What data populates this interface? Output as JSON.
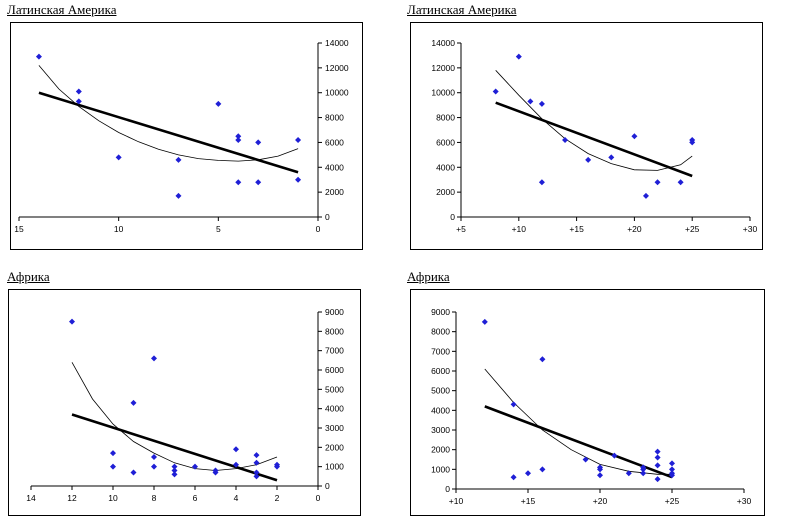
{
  "colors": {
    "points": "#1f1fd6",
    "trend_linear": "#000000",
    "trend_poly": "#000000",
    "axes": "#000000"
  },
  "charts": [
    {
      "heading": "Латинская Америка"
    },
    {
      "heading": "Латинская Америка"
    },
    {
      "heading": "Африка"
    },
    {
      "heading": "Африка"
    }
  ],
  "chart_data": [
    {
      "type": "scatter",
      "title": "Латинская Америка",
      "x_axis": {
        "min": 0,
        "max": 15,
        "reversed": true,
        "ticks": [
          15,
          10,
          5,
          0
        ],
        "tick_labels": [
          "15",
          "10",
          "5",
          "0"
        ]
      },
      "y_axis": {
        "min": 0,
        "max": 14000,
        "position": "right",
        "ticks": [
          0,
          2000,
          4000,
          6000,
          8000,
          10000,
          12000,
          14000
        ],
        "tick_labels": [
          "0",
          "2000",
          "4000",
          "6000",
          "8000",
          "10000",
          "12000",
          "14000"
        ]
      },
      "points": [
        [
          14,
          12900
        ],
        [
          12,
          10100
        ],
        [
          12,
          9300
        ],
        [
          10,
          4800
        ],
        [
          7,
          4600
        ],
        [
          7,
          1700
        ],
        [
          5,
          9100
        ],
        [
          4,
          6500
        ],
        [
          4,
          6200
        ],
        [
          4,
          2800
        ],
        [
          3,
          6000
        ],
        [
          3,
          2800
        ],
        [
          1,
          6200
        ],
        [
          1,
          3000
        ]
      ],
      "linear_trend": [
        [
          14,
          10000
        ],
        [
          1,
          3600
        ]
      ],
      "poly_trend": [
        [
          14,
          12200
        ],
        [
          13,
          10300
        ],
        [
          12,
          8900
        ],
        [
          11,
          7750
        ],
        [
          10,
          6800
        ],
        [
          9,
          6050
        ],
        [
          8,
          5450
        ],
        [
          7,
          5000
        ],
        [
          6,
          4700
        ],
        [
          5,
          4550
        ],
        [
          4,
          4500
        ],
        [
          3,
          4600
        ],
        [
          2,
          4900
        ],
        [
          1,
          5500
        ]
      ],
      "grid": false
    },
    {
      "type": "scatter",
      "title": "Латинская Америка",
      "x_axis": {
        "min": 5,
        "max": 30,
        "ticks": [
          5,
          10,
          15,
          20,
          25,
          30
        ],
        "tick_labels": [
          "+5",
          "+10",
          "+15",
          "+20",
          "+25",
          "+30"
        ]
      },
      "y_axis": {
        "min": 0,
        "max": 14000,
        "position": "left",
        "ticks": [
          0,
          2000,
          4000,
          6000,
          8000,
          10000,
          12000,
          14000
        ],
        "tick_labels": [
          "0",
          "2000",
          "4000",
          "6000",
          "8000",
          "10000",
          "12000",
          "14000"
        ]
      },
      "points": [
        [
          8,
          10100
        ],
        [
          10,
          12900
        ],
        [
          11,
          9300
        ],
        [
          12,
          9100
        ],
        [
          12,
          2800
        ],
        [
          14,
          6200
        ],
        [
          16,
          4600
        ],
        [
          18,
          4800
        ],
        [
          20,
          6500
        ],
        [
          21,
          1700
        ],
        [
          22,
          2800
        ],
        [
          24,
          2800
        ],
        [
          25,
          6200
        ],
        [
          25,
          6000
        ]
      ],
      "linear_trend": [
        [
          8,
          9200
        ],
        [
          25,
          3300
        ]
      ],
      "poly_trend": [
        [
          8,
          11800
        ],
        [
          10,
          9800
        ],
        [
          12,
          7900
        ],
        [
          14,
          6300
        ],
        [
          16,
          5100
        ],
        [
          18,
          4300
        ],
        [
          20,
          3800
        ],
        [
          22,
          3750
        ],
        [
          24,
          4200
        ],
        [
          25,
          4900
        ]
      ],
      "grid": false
    },
    {
      "type": "scatter",
      "title": "Африка",
      "x_axis": {
        "min": 0,
        "max": 14,
        "reversed": true,
        "ticks": [
          14,
          12,
          10,
          8,
          6,
          4,
          2,
          0
        ],
        "tick_labels": [
          "14",
          "12",
          "10",
          "8",
          "6",
          "4",
          "2",
          "0"
        ]
      },
      "y_axis": {
        "min": 0,
        "max": 9000,
        "position": "right",
        "ticks": [
          0,
          1000,
          2000,
          3000,
          4000,
          5000,
          6000,
          7000,
          8000,
          9000
        ],
        "tick_labels": [
          "0",
          "1000",
          "2000",
          "3000",
          "4000",
          "5000",
          "6000",
          "7000",
          "8000",
          "9000"
        ]
      },
      "points": [
        [
          12,
          8500
        ],
        [
          10,
          1700
        ],
        [
          10,
          1000
        ],
        [
          9,
          4300
        ],
        [
          9,
          700
        ],
        [
          8,
          6600
        ],
        [
          8,
          1500
        ],
        [
          8,
          1000
        ],
        [
          7,
          1000
        ],
        [
          7,
          800
        ],
        [
          7,
          600
        ],
        [
          6,
          1000
        ],
        [
          5,
          800
        ],
        [
          5,
          700
        ],
        [
          4,
          1900
        ],
        [
          4,
          1100
        ],
        [
          3,
          1600
        ],
        [
          3,
          1200
        ],
        [
          3,
          700
        ],
        [
          3,
          500
        ],
        [
          2,
          1100
        ],
        [
          2,
          1000
        ]
      ],
      "linear_trend": [
        [
          12,
          3700
        ],
        [
          2,
          300
        ]
      ],
      "poly_trend": [
        [
          12,
          6400
        ],
        [
          11,
          4500
        ],
        [
          10,
          3200
        ],
        [
          9,
          2300
        ],
        [
          8,
          1700
        ],
        [
          7,
          1200
        ],
        [
          6,
          900
        ],
        [
          5,
          800
        ],
        [
          4,
          900
        ],
        [
          3,
          1100
        ],
        [
          2,
          1500
        ]
      ],
      "grid": false
    },
    {
      "type": "scatter",
      "title": "Африка",
      "x_axis": {
        "min": 10,
        "max": 30,
        "ticks": [
          10,
          15,
          20,
          25,
          30
        ],
        "tick_labels": [
          "+10",
          "+15",
          "+20",
          "+25",
          "+30"
        ]
      },
      "y_axis": {
        "min": 0,
        "max": 9000,
        "position": "left",
        "ticks": [
          0,
          1000,
          2000,
          3000,
          4000,
          5000,
          6000,
          7000,
          8000,
          9000
        ],
        "tick_labels": [
          "0",
          "1000",
          "2000",
          "3000",
          "4000",
          "5000",
          "6000",
          "7000",
          "8000",
          "9000"
        ]
      },
      "points": [
        [
          12,
          8500
        ],
        [
          14,
          4300
        ],
        [
          14,
          600
        ],
        [
          15,
          800
        ],
        [
          16,
          6600
        ],
        [
          16,
          1000
        ],
        [
          19,
          1500
        ],
        [
          20,
          1100
        ],
        [
          20,
          1000
        ],
        [
          20,
          700
        ],
        [
          21,
          1700
        ],
        [
          22,
          800
        ],
        [
          23,
          1100
        ],
        [
          23,
          1000
        ],
        [
          23,
          800
        ],
        [
          24,
          1900
        ],
        [
          24,
          1600
        ],
        [
          24,
          1200
        ],
        [
          24,
          500
        ],
        [
          25,
          1300
        ],
        [
          25,
          1000
        ],
        [
          25,
          800
        ],
        [
          25,
          700
        ]
      ],
      "linear_trend": [
        [
          12,
          4200
        ],
        [
          25,
          600
        ]
      ],
      "poly_trend": [
        [
          12,
          6100
        ],
        [
          14,
          4400
        ],
        [
          16,
          3000
        ],
        [
          18,
          2000
        ],
        [
          20,
          1250
        ],
        [
          22,
          900
        ],
        [
          24,
          750
        ],
        [
          25,
          750
        ]
      ],
      "grid": false
    }
  ]
}
